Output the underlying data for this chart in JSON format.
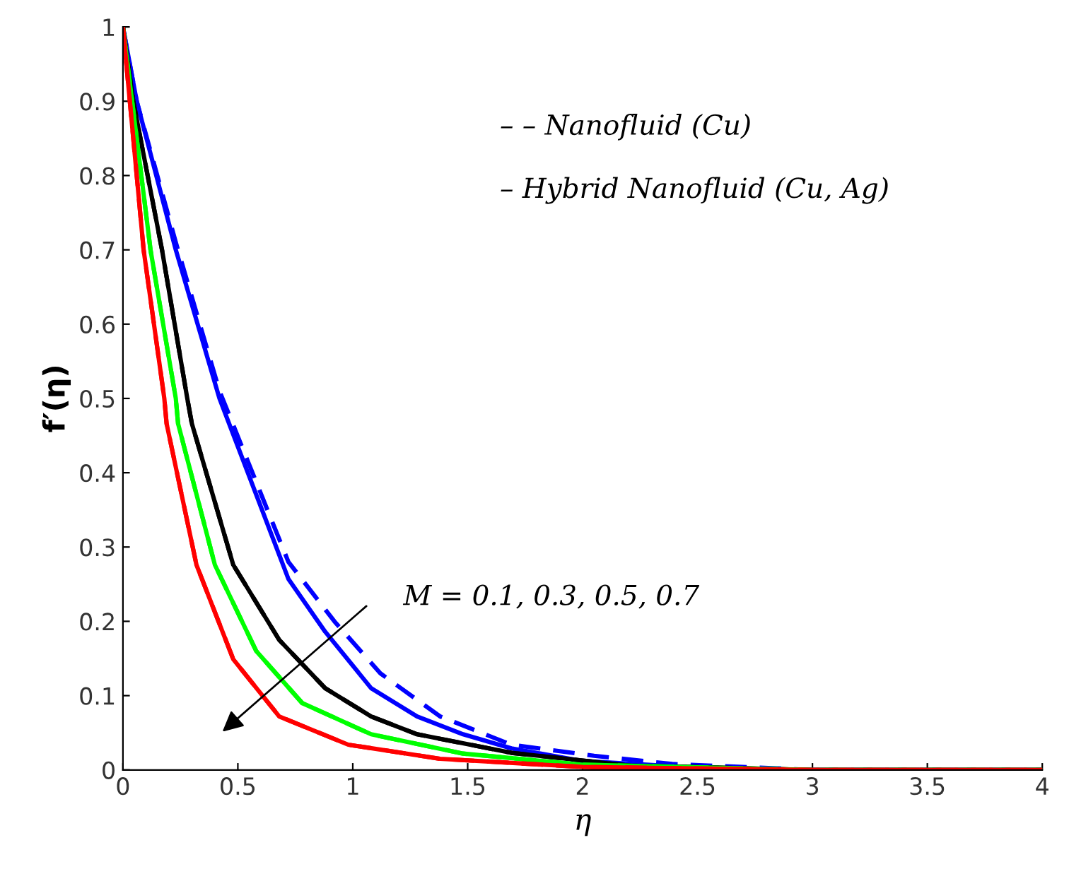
{
  "chart_data": {
    "type": "line",
    "xlabel": "η",
    "ylabel": "f′(η)",
    "xlim": [
      0,
      4
    ],
    "ylim": [
      0,
      1
    ],
    "xticks": [
      0,
      0.5,
      1,
      1.5,
      2,
      2.5,
      3,
      3.5,
      4
    ],
    "yticks": [
      0,
      0.1,
      0.2,
      0.3,
      0.4,
      0.5,
      0.6,
      0.7,
      0.8,
      0.9,
      1
    ],
    "grid": false,
    "legend": false,
    "marker": "none",
    "annotations": [
      "– – Nanofluid (Cu)",
      "– Hybrid Nanofluid (Cu, Ag)",
      "M = 0.1, 0.3, 0.5, 0.7"
    ],
    "series": [
      {
        "color": "#0000ff",
        "line_style": "solid",
        "x": [
          0,
          0.06,
          0.23,
          0.42,
          0.72,
          0.88,
          1.08,
          1.28,
          1.48,
          1.69,
          2.0,
          2.5,
          3,
          4
        ],
        "values": [
          1,
          0.9,
          0.7,
          0.5,
          0.257,
          0.186,
          0.11,
          0.072,
          0.048,
          0.029,
          0.012,
          0.003,
          0,
          0
        ]
      },
      {
        "color": "#0000ff",
        "line_style": "dashed",
        "x": [
          0,
          0.06,
          0.23,
          0.42,
          0.72,
          0.92,
          1.12,
          1.38,
          1.69,
          2.05,
          2.39,
          3,
          4
        ],
        "values": [
          1,
          0.9,
          0.71,
          0.51,
          0.28,
          0.2,
          0.13,
          0.072,
          0.034,
          0.019,
          0.008,
          0,
          0
        ]
      },
      {
        "color": "#000000",
        "line_style": "solid",
        "x": [
          0,
          0.045,
          0.17,
          0.28,
          0.3,
          0.48,
          0.68,
          0.88,
          1.08,
          1.28,
          1.69,
          2.2,
          3,
          4
        ],
        "values": [
          1,
          0.9,
          0.7,
          0.5,
          0.466,
          0.276,
          0.175,
          0.11,
          0.072,
          0.048,
          0.023,
          0.006,
          0,
          0
        ]
      },
      {
        "color": "#000000",
        "line_style": "dashed",
        "x": [
          0,
          0.045,
          0.17,
          0.28,
          0.3,
          0.48,
          0.68,
          0.88,
          1.08,
          1.28,
          1.69,
          2.2,
          3,
          4
        ],
        "values": [
          1,
          0.9,
          0.7,
          0.5,
          0.466,
          0.276,
          0.175,
          0.11,
          0.072,
          0.048,
          0.023,
          0.006,
          0,
          0
        ]
      },
      {
        "color": "#00ff00",
        "line_style": "solid",
        "x": [
          0,
          0.04,
          0.12,
          0.23,
          0.24,
          0.4,
          0.58,
          0.78,
          1.08,
          1.48,
          2.0,
          3,
          4
        ],
        "values": [
          1,
          0.9,
          0.7,
          0.5,
          0.466,
          0.276,
          0.16,
          0.09,
          0.048,
          0.022,
          0.007,
          0,
          0
        ]
      },
      {
        "color": "#00ff00",
        "line_style": "dashed",
        "x": [
          0,
          0.04,
          0.12,
          0.23,
          0.24,
          0.4,
          0.58,
          0.78,
          1.08,
          1.48,
          2.0,
          3,
          4
        ],
        "values": [
          1,
          0.9,
          0.7,
          0.5,
          0.466,
          0.276,
          0.16,
          0.09,
          0.048,
          0.022,
          0.007,
          0,
          0
        ]
      },
      {
        "color": "#ff0000",
        "line_style": "solid",
        "x": [
          0,
          0.03,
          0.09,
          0.18,
          0.19,
          0.32,
          0.48,
          0.68,
          0.98,
          1.38,
          2.0,
          3,
          4
        ],
        "values": [
          1,
          0.9,
          0.7,
          0.5,
          0.466,
          0.276,
          0.149,
          0.072,
          0.034,
          0.015,
          0.004,
          0,
          0
        ]
      },
      {
        "color": "#ff0000",
        "line_style": "dashed",
        "x": [
          0,
          0.03,
          0.09,
          0.18,
          0.19,
          0.32,
          0.48,
          0.68,
          0.98,
          1.38,
          2.0,
          3,
          4
        ],
        "values": [
          1,
          0.9,
          0.7,
          0.5,
          0.466,
          0.276,
          0.149,
          0.072,
          0.034,
          0.015,
          0.004,
          0,
          0
        ]
      }
    ]
  }
}
